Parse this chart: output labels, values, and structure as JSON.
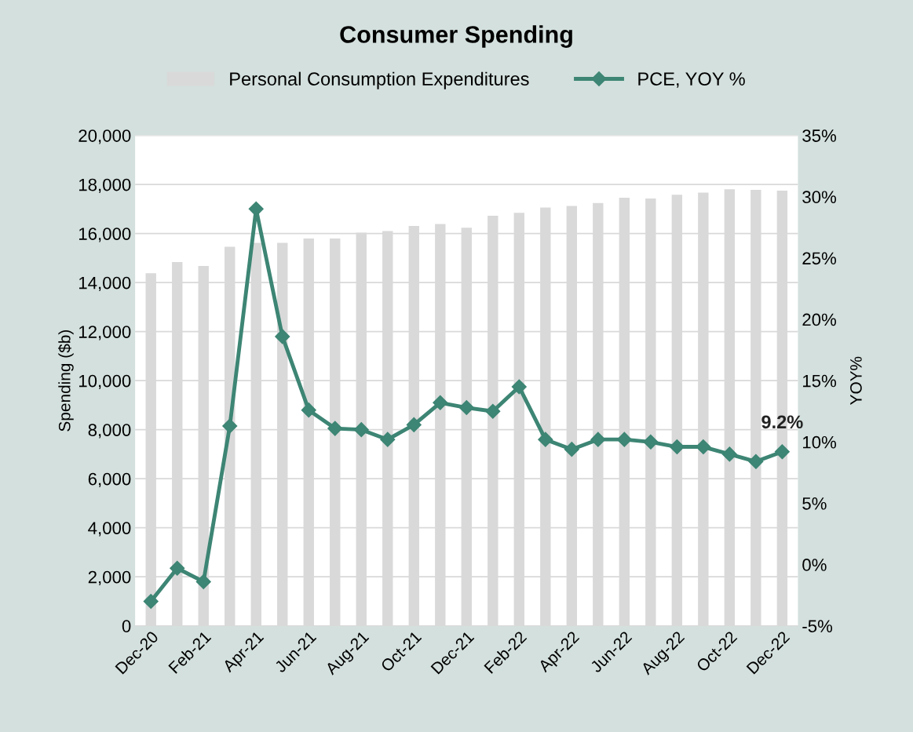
{
  "chart_data": {
    "type": "bar",
    "title": "Consumer Spending",
    "ylabel": "Spending ($b)",
    "y2label": "YOY%",
    "categories": [
      "Dec-20",
      null,
      "Feb-21",
      null,
      "Apr-21",
      null,
      "Jun-21",
      null,
      "Aug-21",
      null,
      "Oct-21",
      null,
      "Dec-21",
      null,
      "Feb-22",
      null,
      "Apr-22",
      null,
      "Jun-22",
      null,
      "Aug-22",
      null,
      "Oct-22",
      null,
      "Dec-22"
    ],
    "series": [
      {
        "name": "Personal Consumption Expenditures",
        "color": "#d9d9d9",
        "values": [
          14380,
          14840,
          14680,
          15460,
          15620,
          15620,
          15800,
          15800,
          16040,
          16100,
          16310,
          16390,
          16240,
          16720,
          16840,
          17060,
          17120,
          17240,
          17460,
          17430,
          17580,
          17670,
          17800,
          17780,
          17750
        ]
      },
      {
        "name": "PCE, YOY %",
        "type": "line",
        "axis": "y2",
        "color": "#3d8574",
        "marker": "diamond",
        "values": [
          -3.0,
          -0.3,
          -1.4,
          11.3,
          29.0,
          18.6,
          12.6,
          11.1,
          11.0,
          10.2,
          11.4,
          13.2,
          12.8,
          12.5,
          14.5,
          10.2,
          9.4,
          10.2,
          10.2,
          10.0,
          9.6,
          9.6,
          9.0,
          8.4,
          9.2
        ],
        "value_labels": [
          null,
          null,
          null,
          null,
          null,
          null,
          null,
          null,
          null,
          null,
          null,
          null,
          null,
          null,
          null,
          null,
          null,
          null,
          null,
          null,
          null,
          null,
          null,
          null,
          "9.2%"
        ]
      }
    ],
    "ylim": [
      0,
      20000
    ],
    "yticks": [
      {
        "value": 0,
        "label": "0"
      },
      {
        "value": 2000,
        "label": "2,000"
      },
      {
        "value": 4000,
        "label": "4,000"
      },
      {
        "value": 6000,
        "label": "6,000"
      },
      {
        "value": 8000,
        "label": "8,000"
      },
      {
        "value": 10000,
        "label": "10,000"
      },
      {
        "value": 12000,
        "label": "12,000"
      },
      {
        "value": 14000,
        "label": "14,000"
      },
      {
        "value": 16000,
        "label": "16,000"
      },
      {
        "value": 18000,
        "label": "18,000"
      },
      {
        "value": 20000,
        "label": "20,000"
      }
    ],
    "y2lim": [
      -5,
      35
    ],
    "y2ticks": [
      {
        "value": -5,
        "label": "-5%"
      },
      {
        "value": 0,
        "label": "0%"
      },
      {
        "value": 5,
        "label": "5%"
      },
      {
        "value": 10,
        "label": "10%"
      },
      {
        "value": 15,
        "label": "15%"
      },
      {
        "value": 20,
        "label": "20%"
      },
      {
        "value": 25,
        "label": "25%"
      },
      {
        "value": 30,
        "label": "30%"
      },
      {
        "value": 35,
        "label": "35%"
      }
    ],
    "grid": "y",
    "legend": "top"
  }
}
